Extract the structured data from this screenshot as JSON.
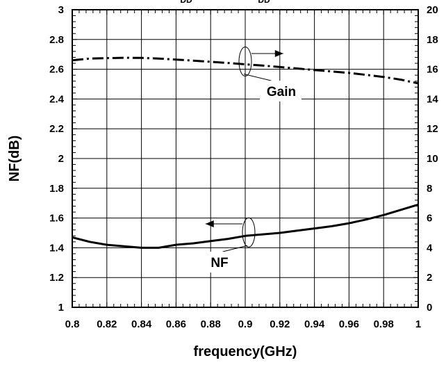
{
  "chart_data": {
    "type": "line",
    "title": "",
    "top_fragments": [
      "DD",
      "DD"
    ],
    "xlabel": "frequency(GHz)",
    "ylabel_left": "NF(dB)",
    "ylabel_right": "",
    "xlim": [
      0.8,
      1.0
    ],
    "ylim_left": [
      1,
      3
    ],
    "ylim_right": [
      0,
      20
    ],
    "x_ticks": [
      "0.8",
      "0.82",
      "0.84",
      "0.86",
      "0.88",
      "0.9",
      "0.92",
      "0.94",
      "0.96",
      "0.98",
      "1"
    ],
    "y_left_ticks": [
      "1",
      "1.2",
      "1.4",
      "1.6",
      "1.8",
      "2",
      "2.2",
      "2.4",
      "2.6",
      "2.8",
      "3"
    ],
    "y_right_ticks": [
      "0",
      "2",
      "4",
      "6",
      "8",
      "10",
      "12",
      "14",
      "16",
      "18",
      "20"
    ],
    "grid": true,
    "series": [
      {
        "name": "Gain",
        "axis": "right",
        "style": "dash-dot",
        "x": [
          0.8,
          0.81,
          0.82,
          0.83,
          0.84,
          0.85,
          0.86,
          0.87,
          0.88,
          0.89,
          0.9,
          0.91,
          0.92,
          0.93,
          0.94,
          0.95,
          0.96,
          0.97,
          0.98,
          0.99,
          1.0
        ],
        "y": [
          16.6,
          16.72,
          16.75,
          16.77,
          16.76,
          16.72,
          16.65,
          16.58,
          16.5,
          16.42,
          16.33,
          16.25,
          16.15,
          16.05,
          15.95,
          15.85,
          15.75,
          15.62,
          15.48,
          15.3,
          15.05
        ]
      },
      {
        "name": "NF",
        "axis": "left",
        "style": "solid",
        "x": [
          0.8,
          0.81,
          0.82,
          0.83,
          0.84,
          0.85,
          0.86,
          0.87,
          0.88,
          0.89,
          0.9,
          0.91,
          0.92,
          0.93,
          0.94,
          0.95,
          0.96,
          0.97,
          0.98,
          0.99,
          1.0
        ],
        "y": [
          1.47,
          1.44,
          1.42,
          1.41,
          1.4,
          1.4,
          1.42,
          1.43,
          1.445,
          1.46,
          1.48,
          1.49,
          1.5,
          1.515,
          1.53,
          1.545,
          1.565,
          1.59,
          1.62,
          1.655,
          1.69
        ]
      }
    ],
    "annotations": {
      "gain_label": "Gain",
      "nf_label": "NF"
    },
    "colors": {
      "line": "#000000",
      "background": "#ffffff"
    }
  }
}
